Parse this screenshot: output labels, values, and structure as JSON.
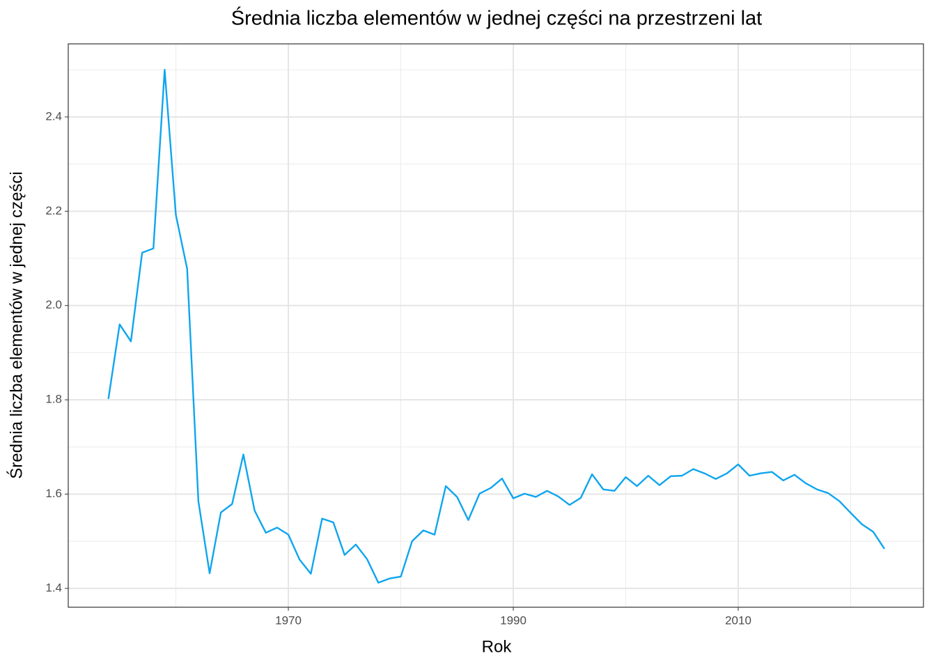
{
  "chart_data": {
    "type": "line",
    "title": "Średnia liczba elementów w jednej części na przestrzeni lat",
    "x_label": "Rok",
    "y_label": "Średnia liczba elementów w jednej części",
    "x": [
      1954,
      1955,
      1956,
      1957,
      1958,
      1959,
      1960,
      1961,
      1962,
      1963,
      1964,
      1965,
      1966,
      1967,
      1968,
      1969,
      1970,
      1971,
      1972,
      1973,
      1974,
      1975,
      1976,
      1977,
      1978,
      1979,
      1980,
      1981,
      1982,
      1983,
      1984,
      1985,
      1986,
      1987,
      1988,
      1989,
      1990,
      1991,
      1992,
      1993,
      1994,
      1995,
      1996,
      1997,
      1998,
      1999,
      2000,
      2001,
      2002,
      2003,
      2004,
      2005,
      2006,
      2007,
      2008,
      2009,
      2010,
      2011,
      2012,
      2013,
      2014,
      2015,
      2016,
      2017,
      2018,
      2019,
      2020,
      2021,
      2022,
      2023
    ],
    "series": [
      {
        "color": "#0ea5ef",
        "values": [
          1.802,
          1.96,
          1.924,
          2.112,
          2.121,
          2.5,
          2.192,
          2.078,
          1.585,
          1.432,
          1.561,
          1.579,
          1.684,
          1.565,
          1.518,
          1.529,
          1.514,
          1.461,
          1.431,
          1.548,
          1.54,
          1.471,
          1.493,
          1.462,
          1.412,
          1.421,
          1.425,
          1.5,
          1.523,
          1.514,
          1.617,
          1.594,
          1.545,
          1.601,
          1.613,
          1.633,
          1.591,
          1.601,
          1.594,
          1.607,
          1.595,
          1.577,
          1.592,
          1.642,
          1.61,
          1.607,
          1.636,
          1.617,
          1.639,
          1.619,
          1.638,
          1.639,
          1.653,
          1.644,
          1.632,
          1.644,
          1.663,
          1.639,
          1.644,
          1.647,
          1.629,
          1.641,
          1.623,
          1.61,
          1.602,
          1.585,
          1.56,
          1.536,
          1.52,
          1.484
        ]
      }
    ],
    "xlim": [
      1950.43,
      2026.47
    ],
    "ylim": [
      1.36,
      2.555
    ],
    "xticks": [
      1970,
      1990,
      2010
    ],
    "yticks": [
      1.4,
      1.6,
      1.8,
      {
        "value": 2,
        "label": "2.0"
      },
      2.2,
      2.4
    ],
    "x_minor_grid": [
      1960,
      1980,
      2000,
      2020
    ],
    "y_minor_grid": [
      1.5,
      1.7,
      1.9,
      2.1,
      2.3,
      2.5
    ],
    "grid": true
  }
}
